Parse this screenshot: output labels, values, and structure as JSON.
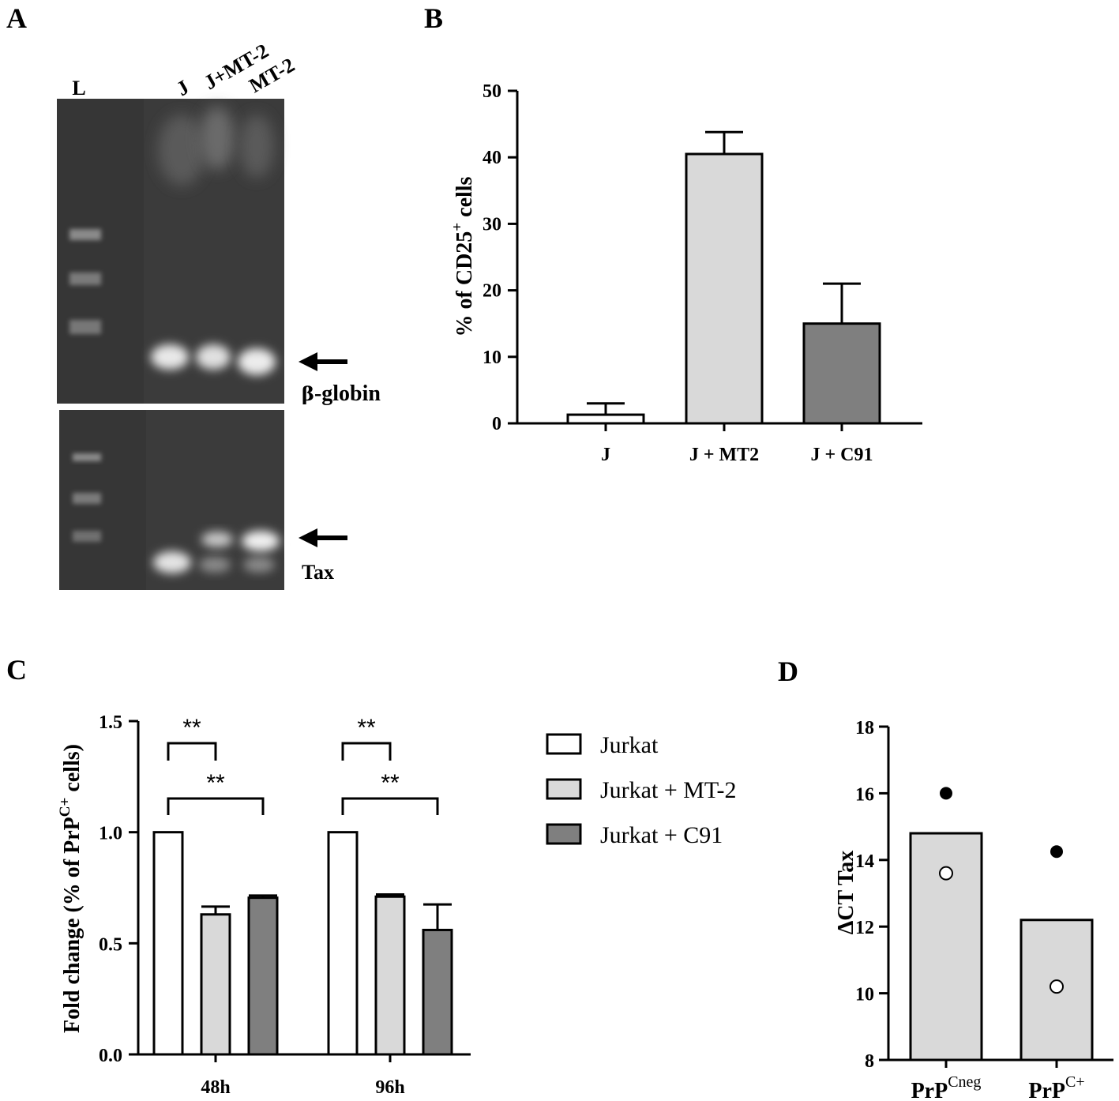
{
  "panels": {
    "A": {
      "letter": "A",
      "lanes": [
        "L",
        "J",
        "J+MT-2",
        "MT-2"
      ],
      "band_labels": {
        "globin_greek": "β",
        "globin_rest": "-globin",
        "tax": "Tax"
      }
    },
    "B": {
      "letter": "B"
    },
    "C": {
      "letter": "C"
    },
    "D": {
      "letter": "D"
    }
  },
  "chart_data": [
    {
      "id": "B",
      "type": "bar",
      "categories": [
        "J",
        "J + MT2",
        "J + C91"
      ],
      "values": [
        1.3,
        40.5,
        15.0
      ],
      "errors": [
        1.7,
        3.3,
        6.0
      ],
      "colors": [
        "#ffffff",
        "#d9d9d9",
        "#7f7f7f"
      ],
      "ylabel_main": "% of CD25",
      "ylabel_sup": "+",
      "ylabel_tail": " cells",
      "ylim": [
        0,
        50
      ],
      "yticks": [
        0,
        10,
        20,
        30,
        40,
        50
      ]
    },
    {
      "id": "C",
      "type": "bar",
      "categories": [
        "48h",
        "96h"
      ],
      "series": [
        {
          "name": "Jurkat",
          "values": [
            1.0,
            1.0
          ],
          "errors": [
            0,
            0
          ],
          "color": "#ffffff"
        },
        {
          "name": "Jurkat + MT-2",
          "values": [
            0.63,
            0.71
          ],
          "errors": [
            0.035,
            0.01
          ],
          "color": "#d9d9d9"
        },
        {
          "name": "Jurkat + C91",
          "values": [
            0.705,
            0.56
          ],
          "errors": [
            0.01,
            0.115
          ],
          "color": "#7f7f7f"
        }
      ],
      "ylabel_main": "Fold change (% of PrP",
      "ylabel_sup": "C+",
      "ylabel_tail": " cells)",
      "ylim": [
        0,
        1.5
      ],
      "yticks": [
        "0.0",
        "0.5",
        "1.0",
        "1.5"
      ],
      "significance": [
        {
          "group": 0,
          "from": 0,
          "to": 1,
          "label": "**"
        },
        {
          "group": 0,
          "from": 0,
          "to": 2,
          "label": "**"
        },
        {
          "group": 1,
          "from": 0,
          "to": 1,
          "label": "**"
        },
        {
          "group": 1,
          "from": 0,
          "to": 2,
          "label": "**"
        }
      ],
      "legend_position": "right"
    },
    {
      "id": "D",
      "type": "bar",
      "categories": [
        {
          "main": "PrP",
          "sup": "Cneg"
        },
        {
          "main": "PrP",
          "sup": "C+"
        }
      ],
      "values": [
        14.8,
        12.2
      ],
      "points_filled": [
        16.0,
        14.25
      ],
      "points_open": [
        13.6,
        10.2
      ],
      "color": "#d9d9d9",
      "ylabel": "ΔCT Tax",
      "ylim": [
        8,
        18
      ],
      "yticks": [
        8,
        10,
        12,
        14,
        16,
        18
      ]
    }
  ]
}
